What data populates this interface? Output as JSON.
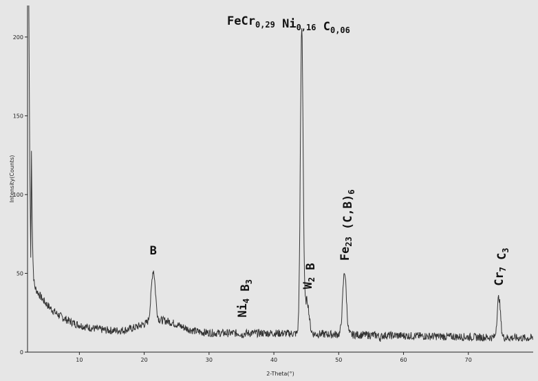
{
  "chart_data": {
    "type": "line",
    "xlabel": "2-Theta(°)",
    "ylabel": "Intensity(Counts)",
    "xlim": [
      2,
      80
    ],
    "ylim": [
      0,
      220
    ],
    "x_ticks": [
      10,
      20,
      30,
      40,
      50,
      60,
      70
    ],
    "y_ticks": [
      0,
      50,
      100,
      150,
      200
    ],
    "grid": false,
    "line_color": "#333333",
    "background": "#e6e6e6",
    "peaks": [
      {
        "x": 2.3,
        "y": 220
      },
      {
        "x": 21.4,
        "y": 52
      },
      {
        "x": 35.1,
        "y": 11
      },
      {
        "x": 44.3,
        "y": 205
      },
      {
        "x": 45.1,
        "y": 33
      },
      {
        "x": 50.9,
        "y": 51
      },
      {
        "x": 56.4,
        "y": 9
      },
      {
        "x": 74.7,
        "y": 35
      }
    ],
    "annotations": [
      {
        "id": "fecrnic",
        "x": 44.3,
        "y": 212,
        "parts": [
          {
            "t": "FeCr",
            "sub": false
          },
          {
            "t": "0,29",
            "sub": true
          },
          {
            "t": " Ni",
            "sub": false
          },
          {
            "t": "0,16",
            "sub": true
          },
          {
            "t": " C",
            "sub": false
          },
          {
            "t": "0,06",
            "sub": true
          }
        ],
        "vertical": false
      },
      {
        "id": "b",
        "x": 21.4,
        "y": 62,
        "parts": [
          {
            "t": "B",
            "sub": false
          }
        ],
        "vertical": false
      },
      {
        "id": "ni4b3",
        "x": 35.1,
        "y": 22,
        "parts": [
          {
            "t": "Ni",
            "sub": false
          },
          {
            "t": "4",
            "sub": true
          },
          {
            "t": " B",
            "sub": false
          },
          {
            "t": "3",
            "sub": true
          }
        ],
        "vertical": true
      },
      {
        "id": "w2b",
        "x": 45.2,
        "y": 40,
        "parts": [
          {
            "t": "W",
            "sub": false
          },
          {
            "t": "2",
            "sub": true
          },
          {
            "t": " B",
            "sub": false
          }
        ],
        "vertical": true
      },
      {
        "id": "fe23cb6",
        "x": 50.9,
        "y": 58,
        "parts": [
          {
            "t": "Fe",
            "sub": false
          },
          {
            "t": "23",
            "sub": true
          },
          {
            "t": " (C,B)",
            "sub": false
          },
          {
            "t": "6",
            "sub": true
          }
        ],
        "vertical": true
      },
      {
        "id": "cr7c3",
        "x": 74.7,
        "y": 42,
        "parts": [
          {
            "t": "Cr",
            "sub": false
          },
          {
            "t": "7",
            "sub": true
          },
          {
            "t": " C",
            "sub": false
          },
          {
            "t": "3",
            "sub": true
          }
        ],
        "vertical": true
      }
    ]
  }
}
